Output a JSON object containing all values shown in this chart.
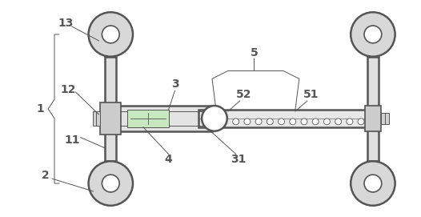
{
  "bg_color": "#ffffff",
  "line_color": "#555555",
  "fig_width": 5.26,
  "fig_height": 2.71,
  "dpi": 100,
  "wheel_r": 0.055,
  "wheel_inner_r": 0.022,
  "lw_thick": 1.8,
  "lw_mid": 1.2,
  "lw_thin": 0.7
}
